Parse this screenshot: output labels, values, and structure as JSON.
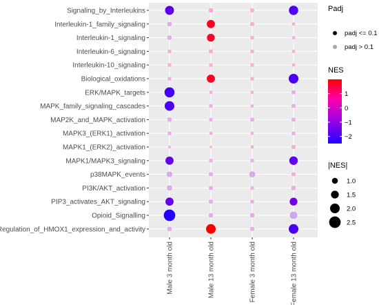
{
  "chart_data": {
    "type": "scatter",
    "pathways": [
      "Signaling_by_Interleukins",
      "Interleukin-1_family_signaling",
      "Interleukin-1_signaling",
      "Interleukin-6_signaling",
      "Interleukin-10_signaling",
      "Biological_oxidations",
      "ERK/MAPK_targets",
      "MAPK_family_signaling_cascades",
      "MAP2K_and_MAPK_activation",
      "MAPK3_(ERK1)_activation",
      "MAPK1_(ERK2)_activation",
      "MAPK1/MAPK3_signaling",
      "p38MAPK_events",
      "PI3K/AKT_activation",
      "PIP3_activates_AKT_signaling",
      "Opioid_Signalling",
      "Regulation_of_HMOX1_expression_and_activity"
    ],
    "groups": [
      "Male 3 month old",
      "Male 13 month old",
      "Female 3 month old",
      "Female 13 month old"
    ],
    "nes": [
      [
        -1.8,
        0.6,
        0.5,
        -1.9
      ],
      [
        -0.6,
        1.6,
        0.5,
        -0.3
      ],
      [
        -0.6,
        1.5,
        0.4,
        -0.3
      ],
      [
        0.4,
        0.5,
        0.4,
        0.3
      ],
      [
        0.4,
        0.4,
        0.4,
        0.3
      ],
      [
        0.4,
        1.6,
        0.4,
        -2.0
      ],
      [
        -2.1,
        -0.3,
        -0.3,
        -0.5
      ],
      [
        -2.0,
        -0.4,
        -0.3,
        -0.5
      ],
      [
        -0.6,
        -0.4,
        -0.5,
        -0.5
      ],
      [
        -0.4,
        -0.3,
        -0.3,
        -0.4
      ],
      [
        -0.2,
        0.1,
        -0.3,
        0.5
      ],
      [
        -1.6,
        -0.4,
        -0.4,
        -1.7
      ],
      [
        -0.9,
        -0.5,
        -1.0,
        0.5
      ],
      [
        -0.8,
        -0.5,
        -0.4,
        -0.6
      ],
      [
        -1.6,
        -0.5,
        -0.4,
        -1.5
      ],
      [
        -2.5,
        -0.6,
        -0.6,
        -1.4
      ],
      [
        -0.6,
        2.0,
        -0.5,
        -2.0
      ]
    ],
    "padj_significant": [
      [
        true,
        false,
        false,
        true
      ],
      [
        false,
        true,
        false,
        false
      ],
      [
        false,
        true,
        false,
        false
      ],
      [
        false,
        false,
        false,
        false
      ],
      [
        false,
        false,
        false,
        false
      ],
      [
        false,
        true,
        false,
        true
      ],
      [
        true,
        false,
        false,
        false
      ],
      [
        true,
        false,
        false,
        false
      ],
      [
        false,
        false,
        false,
        false
      ],
      [
        false,
        false,
        false,
        false
      ],
      [
        false,
        false,
        false,
        false
      ],
      [
        true,
        false,
        false,
        true
      ],
      [
        false,
        false,
        false,
        false
      ],
      [
        false,
        false,
        false,
        false
      ],
      [
        true,
        false,
        false,
        true
      ],
      [
        true,
        false,
        false,
        false
      ],
      [
        false,
        true,
        false,
        true
      ]
    ],
    "color_scale": {
      "low": "#2200ff",
      "mid": "#9900dd",
      "zero": "#ff00aa",
      "high": "#ff0000",
      "min": -2.5,
      "max": 2.0
    },
    "legend": {
      "padj_title": "Padj",
      "padj_items": [
        "padj <= 0.1",
        "padj > 0.1"
      ],
      "nes_title": "NES",
      "nes_ticks": [
        "1",
        "0",
        "−1",
        "−2"
      ],
      "nes_tick_values": [
        1,
        0,
        -1,
        -2
      ],
      "size_title": "|NES|",
      "size_items": [
        "1.0",
        "1.5",
        "2.0",
        "2.5"
      ],
      "size_values": [
        1.0,
        1.5,
        2.0,
        2.5
      ]
    },
    "panel_background": "#ebebeb",
    "grid": true,
    "legend_placement": "right"
  }
}
